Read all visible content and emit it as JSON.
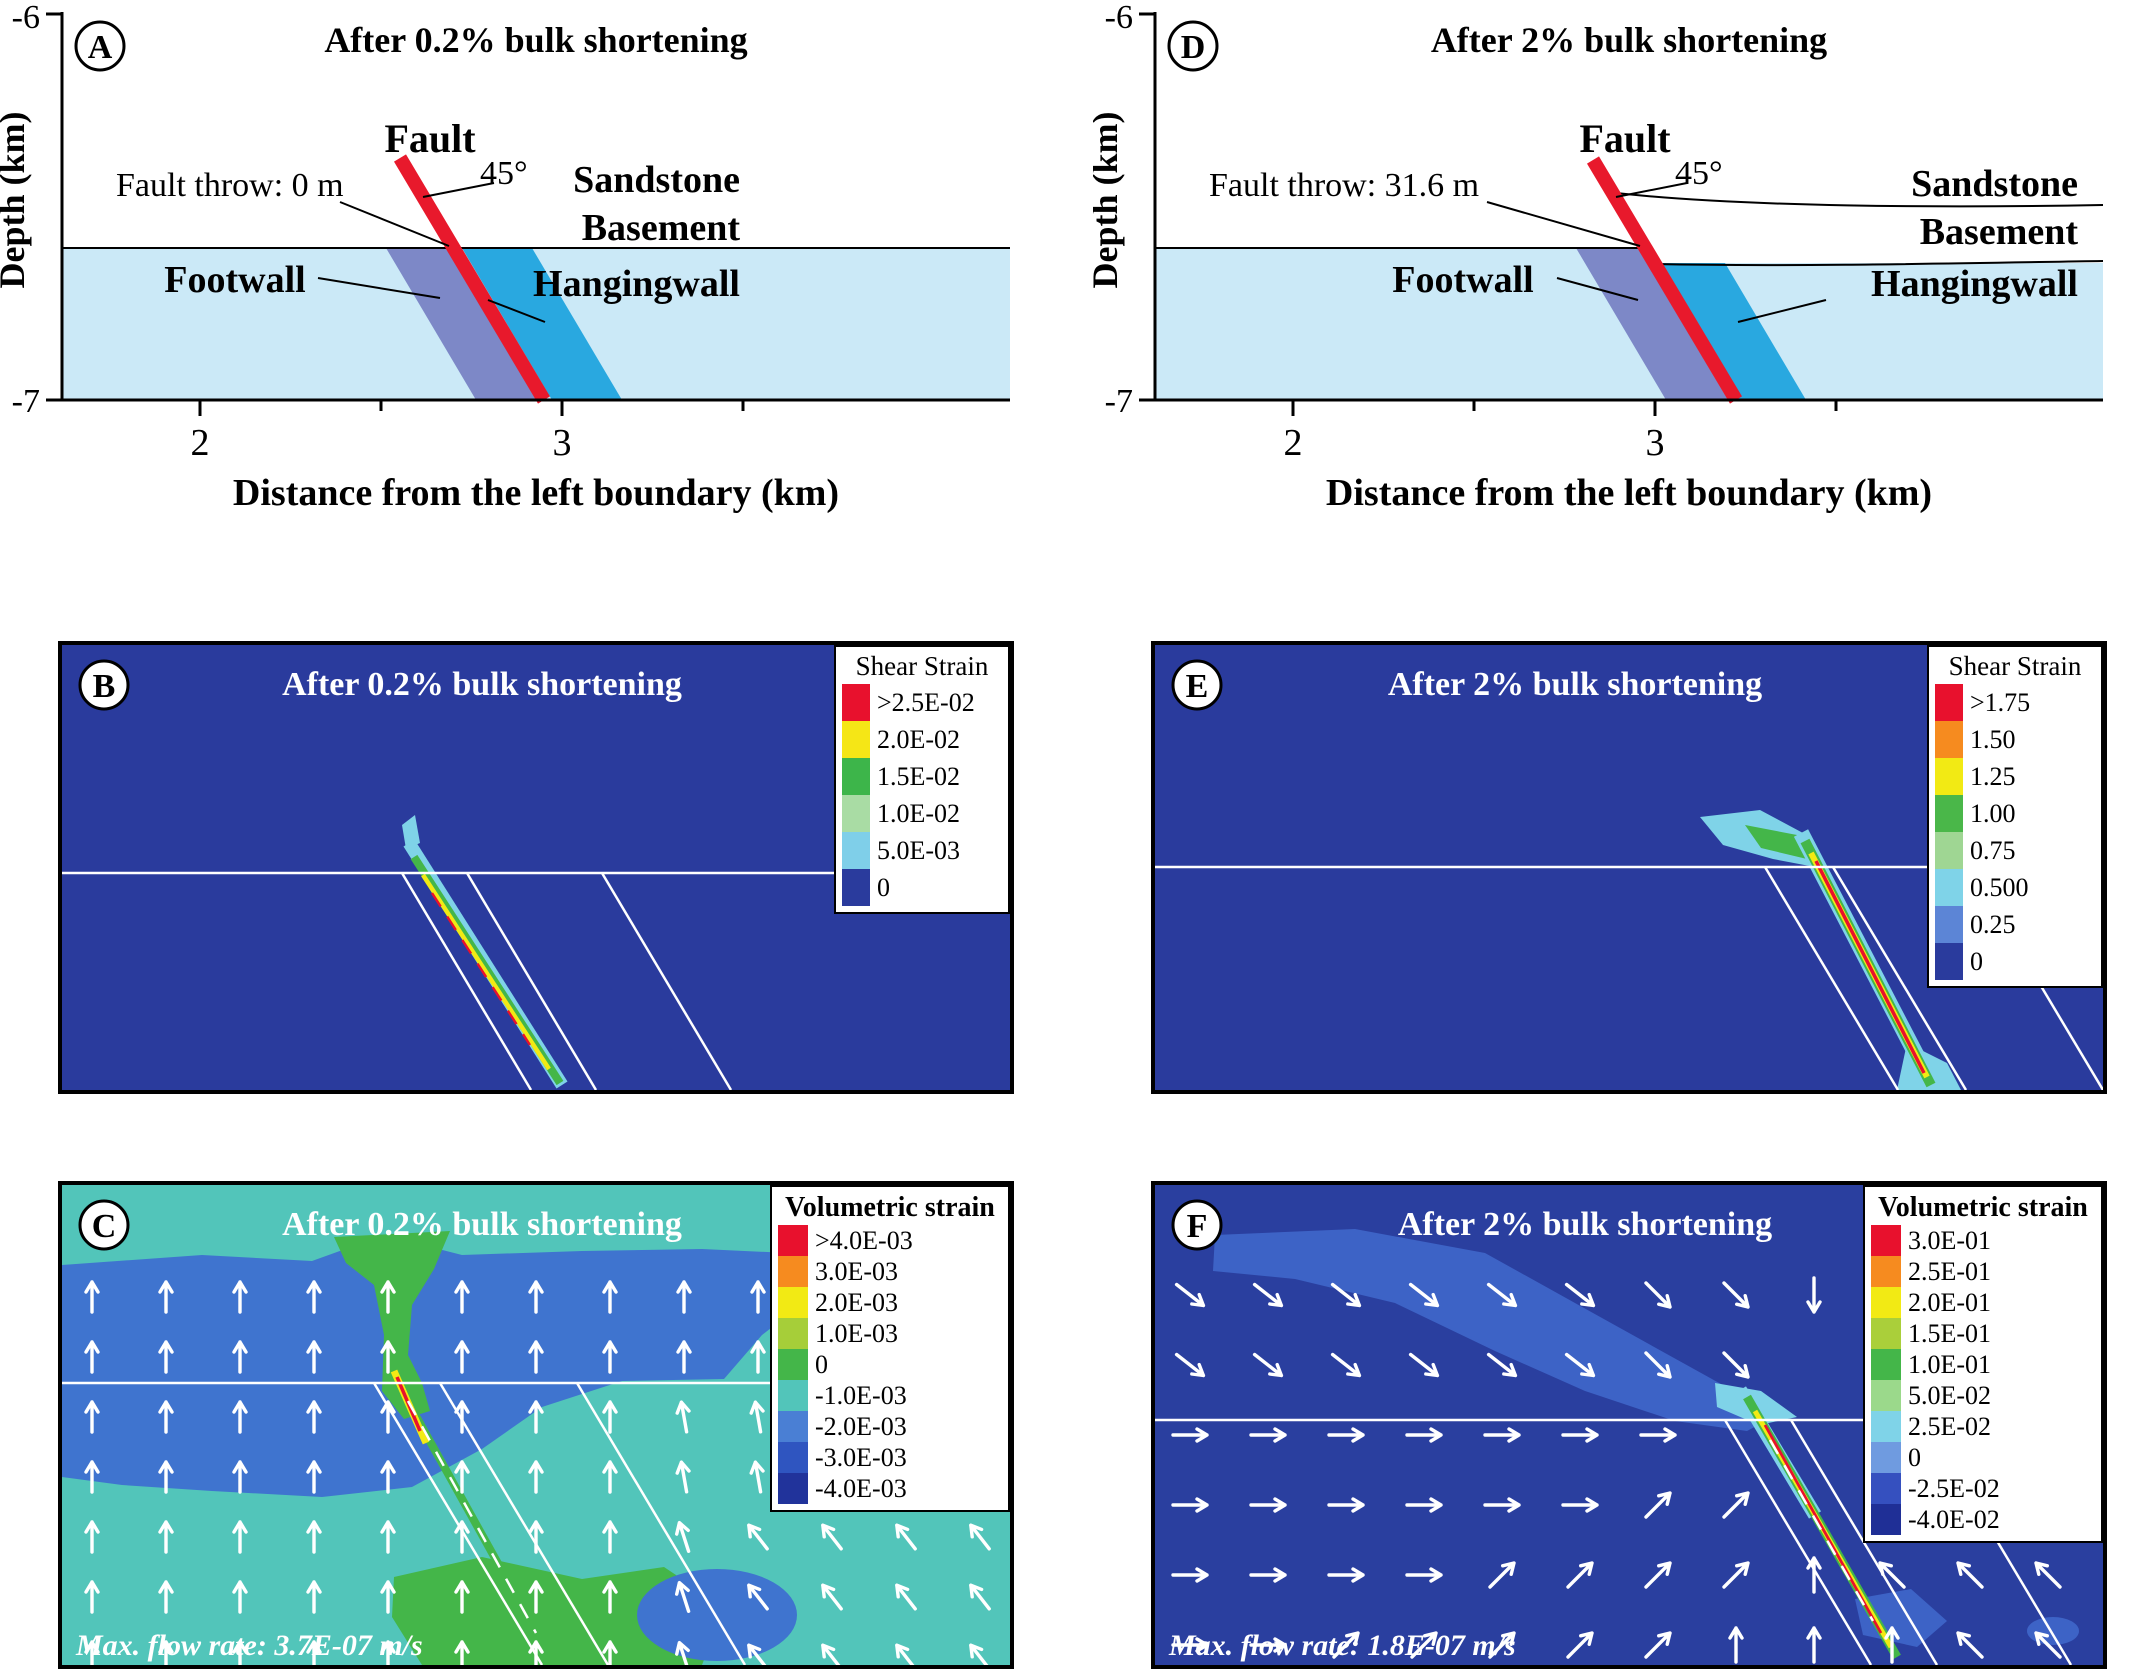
{
  "palette": {
    "basement": "#cbe9f7",
    "footwall_band": "#7d88c7",
    "hangingwall_band": "#29a8e0",
    "fault": "#e8192c",
    "strain_bg": "#2a3b9d",
    "volumetric_bg_C": "#52c5ba",
    "volumetric_bg_F": "#2a3f9f"
  },
  "figure": {
    "axes": {
      "y_label": "Depth (km)",
      "y_top": "-6",
      "y_bottom": "-7",
      "x_label": "Distance from the left boundary (km)",
      "x_tick_1": "2",
      "x_tick_2": "3"
    },
    "panels": {
      "A": {
        "tag": "A",
        "title": "After 0.2% bulk shortening",
        "fault_label": "Fault",
        "fault_angle": "45°",
        "fault_throw": "Fault throw: 0 m",
        "sandstone": "Sandstone",
        "basement": "Basement",
        "footwall": "Footwall",
        "hangingwall": "Hangingwall"
      },
      "D": {
        "tag": "D",
        "title": "After 2% bulk shortening",
        "fault_label": "Fault",
        "fault_angle": "45°",
        "fault_throw": "Fault throw: 31.6 m",
        "sandstone": "Sandstone",
        "basement": "Basement",
        "footwall": "Footwall",
        "hangingwall": "Hangingwall"
      },
      "B": {
        "tag": "B",
        "title": "After 0.2% bulk shortening",
        "legend": {
          "title": "Shear Strain",
          "items": [
            {
              "label": ">2.5E-02",
              "color": "#e8112d"
            },
            {
              "label": "2.0E-02",
              "color": "#f5e616"
            },
            {
              "label": "1.5E-02",
              "color": "#3db54a"
            },
            {
              "label": "1.0E-02",
              "color": "#a9dca4"
            },
            {
              "label": "5.0E-03",
              "color": "#7fcfe9"
            },
            {
              "label": "0",
              "color": "#2a3b9d"
            }
          ]
        }
      },
      "E": {
        "tag": "E",
        "title": "After 2% bulk shortening",
        "legend": {
          "title": "Shear Strain",
          "items": [
            {
              "label": ">1.75",
              "color": "#e8112d"
            },
            {
              "label": "1.50",
              "color": "#f68b1f"
            },
            {
              "label": "1.25",
              "color": "#f2ea14"
            },
            {
              "label": "1.00",
              "color": "#4ab749"
            },
            {
              "label": "0.75",
              "color": "#9fd693"
            },
            {
              "label": "0.500",
              "color": "#7fd3e8"
            },
            {
              "label": "0.25",
              "color": "#5c85d6"
            },
            {
              "label": "0",
              "color": "#2a3b9d"
            }
          ]
        }
      },
      "C": {
        "tag": "C",
        "title": "After 0.2% bulk shortening",
        "max_flow": "Max. flow rate: 3.7E-07 m/s",
        "legend": {
          "title": "Volumetric strain",
          "items": [
            {
              "label": ">4.0E-03",
              "color": "#e8112d"
            },
            {
              "label": "3.0E-03",
              "color": "#f68b1f"
            },
            {
              "label": "2.0E-03",
              "color": "#f2ea14"
            },
            {
              "label": "1.0E-03",
              "color": "#a6ce39"
            },
            {
              "label": "0",
              "color": "#44b649"
            },
            {
              "label": "-1.0E-03",
              "color": "#52c5ba"
            },
            {
              "label": "-2.0E-03",
              "color": "#4a7fd4"
            },
            {
              "label": "-3.0E-03",
              "color": "#2f55c0"
            },
            {
              "label": "-4.0E-03",
              "color": "#21339b"
            }
          ]
        }
      },
      "F": {
        "tag": "F",
        "title": "After 2% bulk shortening",
        "max_flow": "Max. flow rate: 1.8E-07 m/s",
        "legend": {
          "title": "Volumetric strain",
          "items": [
            {
              "label": "3.0E-01",
              "color": "#e8112d"
            },
            {
              "label": "2.5E-01",
              "color": "#f68b1f"
            },
            {
              "label": "2.0E-01",
              "color": "#f2ea14"
            },
            {
              "label": "1.5E-01",
              "color": "#aacf3a"
            },
            {
              "label": "1.0E-01",
              "color": "#44b649"
            },
            {
              "label": "5.0E-02",
              "color": "#9bd98b"
            },
            {
              "label": "2.5E-02",
              "color": "#7fd3e8"
            },
            {
              "label": "0",
              "color": "#6f9be0"
            },
            {
              "label": "-2.5E-02",
              "color": "#3550bf"
            },
            {
              "label": "-4.0E-02",
              "color": "#1f2f96"
            }
          ]
        }
      }
    }
  },
  "chart_data": [
    {
      "type": "area",
      "panel": "A",
      "title": "After 0.2% bulk shortening",
      "xlabel": "Distance from the left boundary (km)",
      "ylabel": "Depth (km)",
      "xlim": [
        1.6,
        4.2
      ],
      "xticks": [
        2,
        3
      ],
      "ylim": [
        -7,
        -6
      ],
      "fault_dip_deg": 45,
      "fault_throw_m": 0,
      "layers": [
        "Sandstone",
        "Basement"
      ],
      "annotations": [
        "Fault",
        "45°",
        "Fault throw: 0 m",
        "Footwall",
        "Hangingwall"
      ]
    },
    {
      "type": "area",
      "panel": "D",
      "title": "After 2% bulk shortening",
      "xlabel": "Distance from the left boundary (km)",
      "ylabel": "Depth (km)",
      "xlim": [
        1.6,
        4.2
      ],
      "xticks": [
        2,
        3
      ],
      "ylim": [
        -7,
        -6
      ],
      "fault_dip_deg": 45,
      "fault_throw_m": 31.6,
      "layers": [
        "Sandstone",
        "Basement"
      ],
      "annotations": [
        "Fault",
        "45°",
        "Fault throw: 31.6 m",
        "Footwall",
        "Hangingwall"
      ]
    },
    {
      "type": "heatmap",
      "panel": "B",
      "title": "After 0.2% bulk shortening",
      "legend_title": "Shear Strain",
      "scale_labels": [
        ">2.5E-02",
        "2.0E-02",
        "1.5E-02",
        "1.0E-02",
        "5.0E-03",
        "0"
      ],
      "scale_colors": [
        "#e8112d",
        "#f5e616",
        "#3db54a",
        "#a9dca4",
        "#7fcfe9",
        "#2a3b9d"
      ],
      "description": "Shear strain localized as a narrow multicolour band along the 45-degree fault"
    },
    {
      "type": "heatmap",
      "panel": "E",
      "title": "After 2% bulk shortening",
      "legend_title": "Shear Strain",
      "scale_labels": [
        ">1.75",
        "1.50",
        "1.25",
        "1.00",
        "0.75",
        "0.500",
        "0.25",
        "0"
      ],
      "scale_colors": [
        "#e8112d",
        "#f68b1f",
        "#f2ea14",
        "#4ab749",
        "#9fd693",
        "#7fd3e8",
        "#5c85d6",
        "#2a3b9d"
      ],
      "description": "High shear strain with red core along the fault and halo at the upper fault tip"
    },
    {
      "type": "heatmap",
      "panel": "C",
      "title": "After 0.2% bulk shortening",
      "legend_title": "Volumetric strain",
      "scale_labels": [
        ">4.0E-03",
        "3.0E-03",
        "2.0E-03",
        "1.0E-03",
        "0",
        "-1.0E-03",
        "-2.0E-03",
        "-3.0E-03",
        "-4.0E-03"
      ],
      "scale_colors": [
        "#e8112d",
        "#f68b1f",
        "#f2ea14",
        "#a6ce39",
        "#44b649",
        "#52c5ba",
        "#4a7fd4",
        "#2f55c0",
        "#21339b"
      ],
      "annotation": "Max. flow rate: 3.7E-07 m/s",
      "flow_arrows": "mostly upward"
    },
    {
      "type": "heatmap",
      "panel": "F",
      "title": "After 2% bulk shortening",
      "legend_title": "Volumetric strain",
      "scale_labels": [
        "3.0E-01",
        "2.5E-01",
        "2.0E-01",
        "1.5E-01",
        "1.0E-01",
        "5.0E-02",
        "2.5E-02",
        "0",
        "-2.5E-02",
        "-4.0E-02"
      ],
      "scale_colors": [
        "#e8112d",
        "#f68b1f",
        "#f2ea14",
        "#aacf3a",
        "#44b649",
        "#9bd98b",
        "#7fd3e8",
        "#6f9be0",
        "#3550bf",
        "#1f2f96"
      ],
      "annotation": "Max. flow rate: 1.8E-07 m/s",
      "flow_arrows": "converging toward the fault"
    }
  ]
}
